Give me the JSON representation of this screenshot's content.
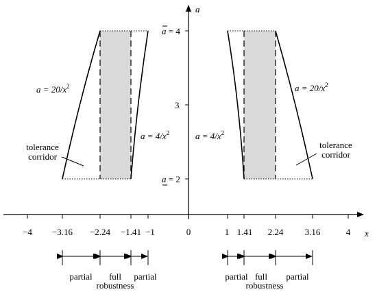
{
  "axis_labels": {
    "x": "x",
    "y": "a"
  },
  "x_ticks": [
    "−4",
    "−3.16",
    "−2.24",
    "−1.41",
    "−1",
    "0",
    "1",
    "1.41",
    "2.24",
    "3.16",
    "4"
  ],
  "y_ticks": {
    "upper_var": "a",
    "upper_val": "= 4",
    "mid": "3",
    "lower_var": "a",
    "lower_val": "= 2"
  },
  "curves": {
    "left_outer": {
      "lhs": "a = 20/x",
      "exp": "2"
    },
    "left_inner": {
      "lhs": "a = 4/x",
      "exp": "2"
    },
    "right_inner": {
      "lhs": "a = 4/x",
      "exp": "2"
    },
    "right_outer": {
      "lhs": "a = 20/x",
      "exp": "2"
    }
  },
  "corridor": {
    "left": {
      "line1": "tolerance",
      "line2": "corridor"
    },
    "right": {
      "line1": "tolerance",
      "line2": "corridor"
    }
  },
  "robustness": {
    "left": {
      "partial_a": "partial",
      "full": "full",
      "robust": "robustness",
      "partial_b": "partial"
    },
    "right": {
      "partial_a": "partial",
      "full": "full",
      "robust": "robustness",
      "partial_b": "partial"
    }
  },
  "colors": {
    "band": "#d9d9d9",
    "ink": "#000000"
  }
}
